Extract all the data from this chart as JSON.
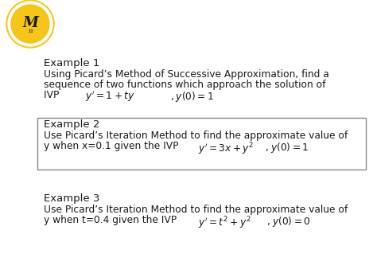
{
  "bg_color": "#ffffff",
  "text_color": "#1a1a1a",
  "box_edge_color": "#888888",
  "logo_yellow": "#f5c518",
  "logo_inner": "#ffffff",
  "font_size_title": 9.5,
  "font_size_body": 8.8,
  "example1_title": "Example 1",
  "example1_line1": "Using Picard’s Method of Successive Approximation, find a",
  "example1_line2": "sequence of two functions which approach the solution of",
  "example2_title": "Example 2",
  "example2_line1": "Use Picard’s Iteration Method to find the approximate value of",
  "example3_title": "Example 3",
  "example3_line1": "Use Picard’s Iteration Method to find the approximate value of"
}
